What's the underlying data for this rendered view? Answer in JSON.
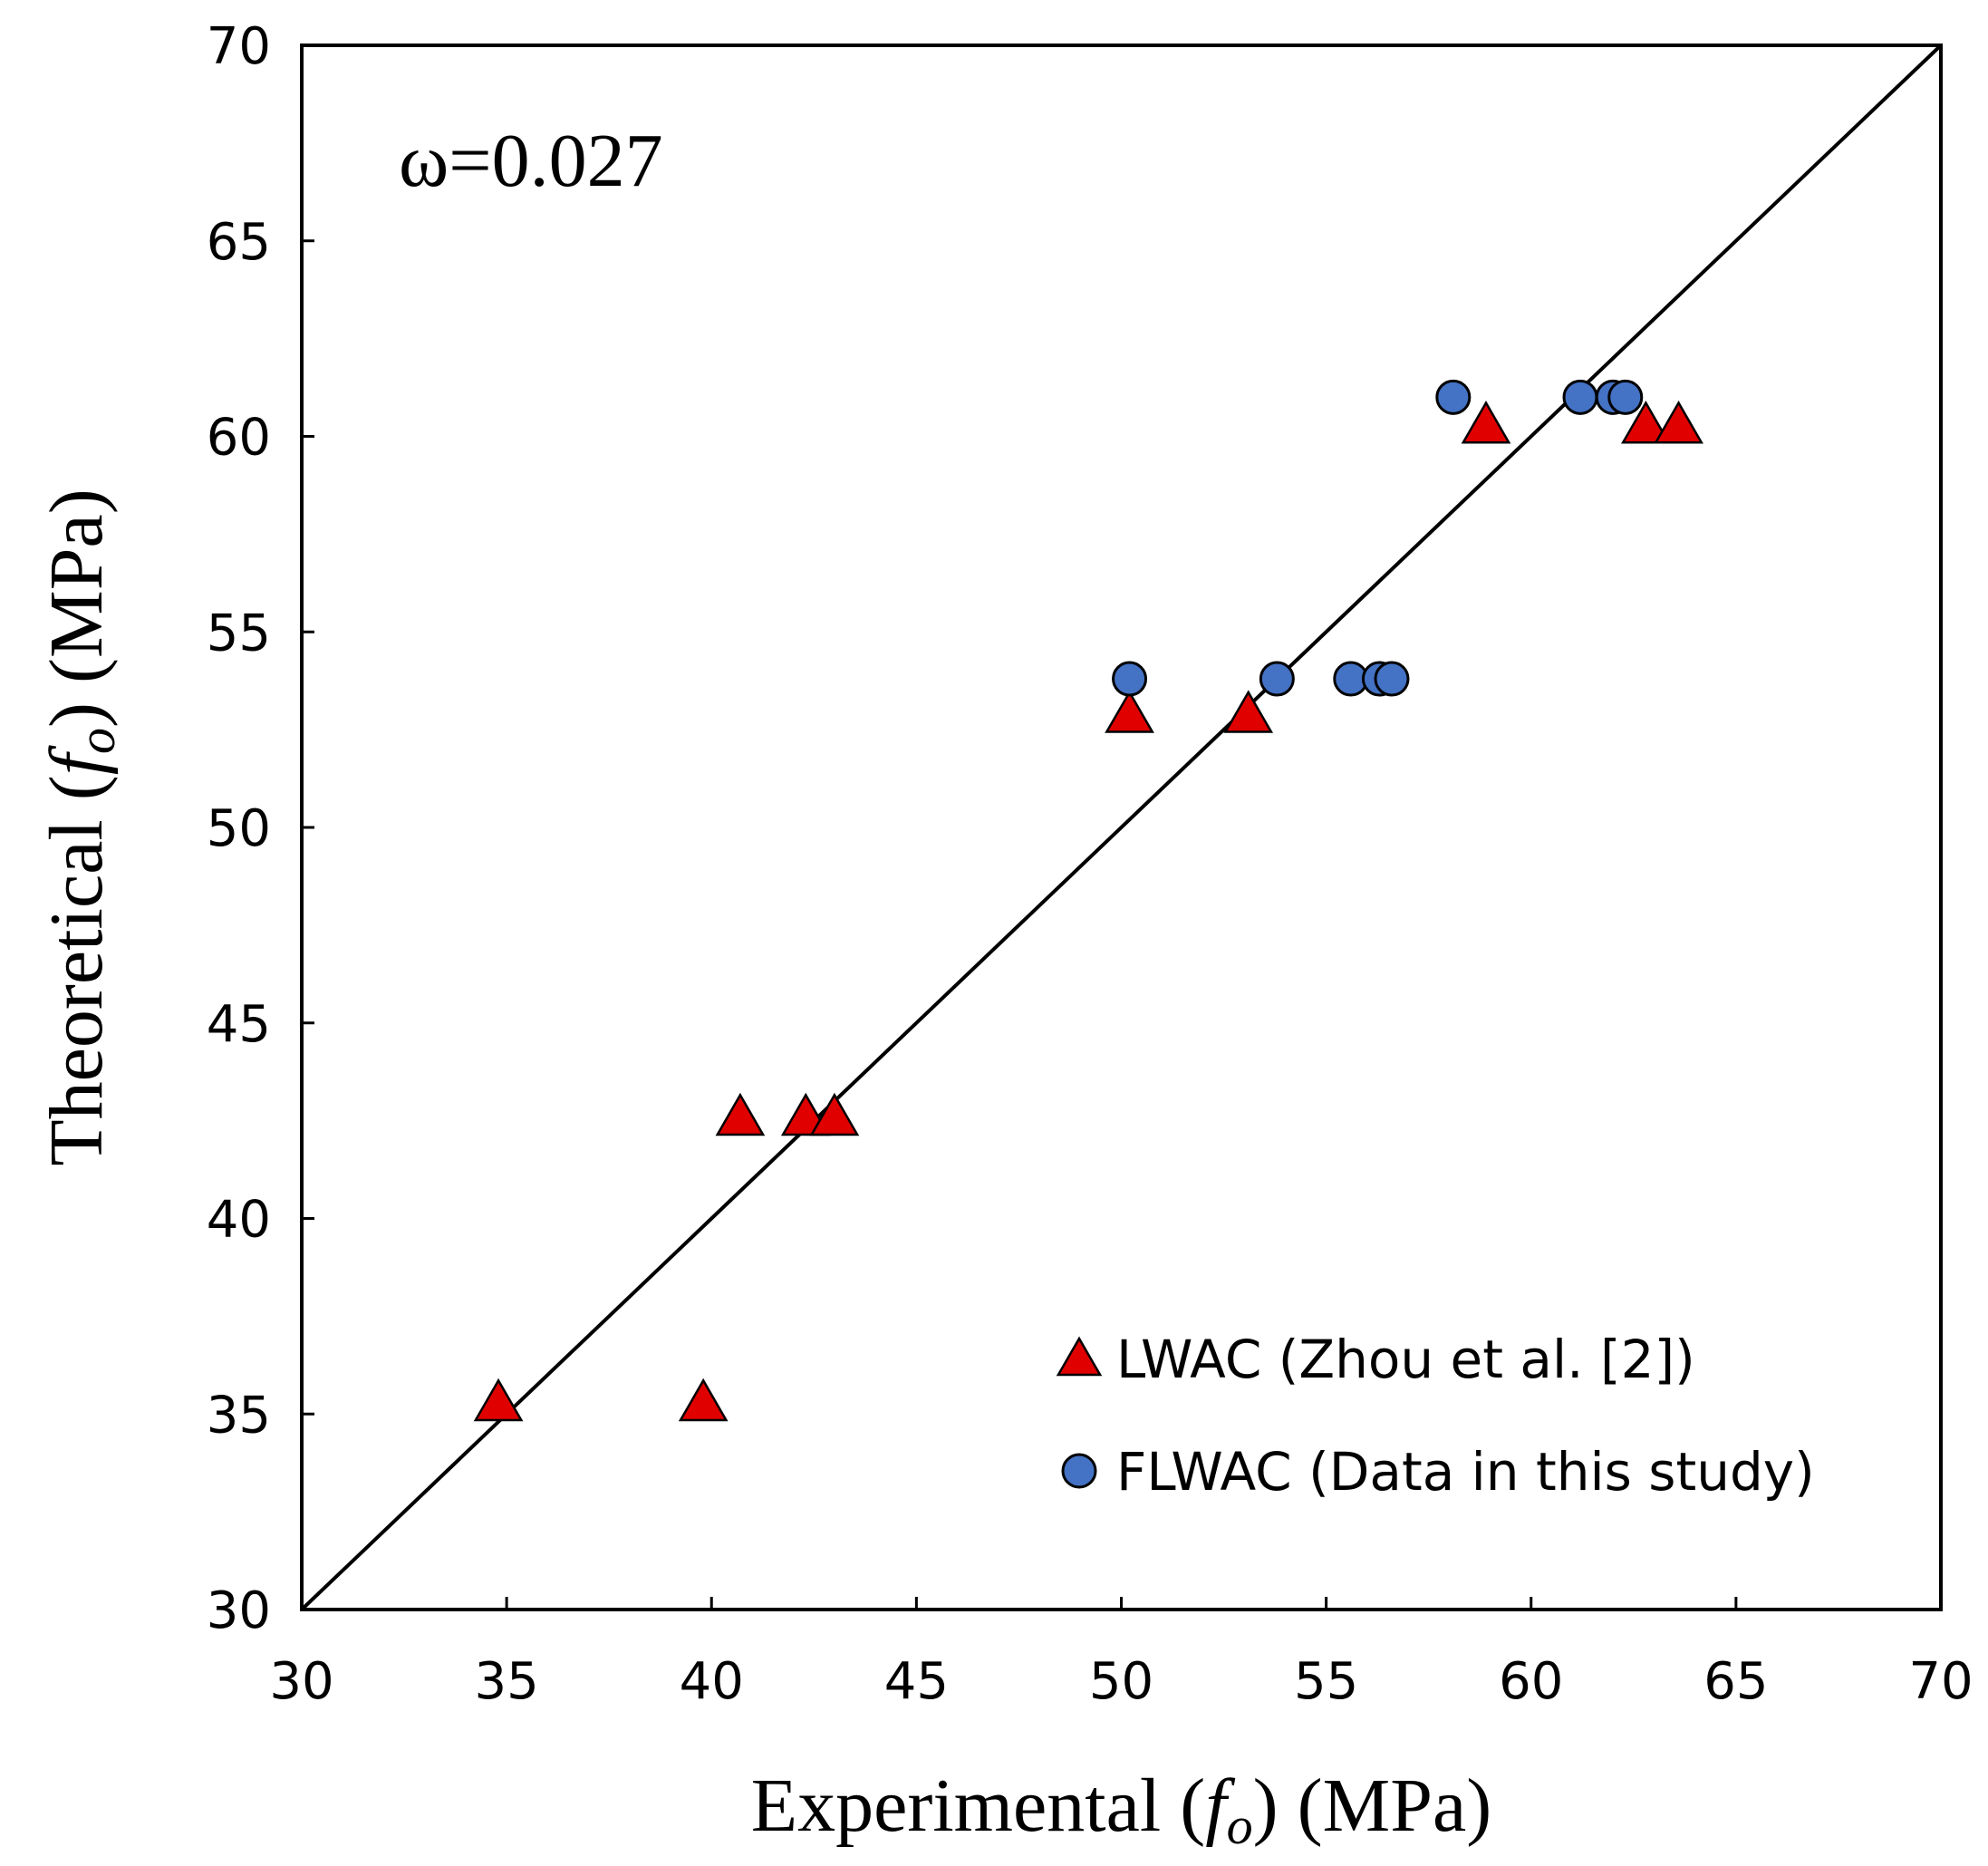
{
  "chart_data": {
    "type": "scatter",
    "title": "",
    "xlabel": {
      "prefix": "Experimental (",
      "symbol": "f",
      "sub": "o",
      "suffix": ") (MPa)"
    },
    "ylabel": {
      "prefix": "Theoretical (",
      "symbol": "f",
      "sub": "o",
      "suffix": ") (MPa)"
    },
    "xlim": [
      30,
      70
    ],
    "ylim": [
      30,
      70
    ],
    "xticks": [
      30,
      35,
      40,
      45,
      50,
      55,
      60,
      65,
      70
    ],
    "yticks": [
      30,
      35,
      40,
      45,
      50,
      55,
      60,
      65,
      70
    ],
    "annotation": "ω=0.027",
    "reference_line": {
      "name": "y = x",
      "from": [
        30,
        30
      ],
      "to": [
        70,
        70
      ]
    },
    "legend_position": "bottom-right",
    "series": [
      {
        "name": "LWAC (Zhou et al. [2])",
        "marker": "triangle",
        "color": "#e00000",
        "points": [
          [
            34.8,
            35.3
          ],
          [
            39.8,
            35.3
          ],
          [
            40.7,
            42.6
          ],
          [
            42.3,
            42.6
          ],
          [
            43.0,
            42.6
          ],
          [
            50.2,
            52.9
          ],
          [
            53.1,
            52.9
          ],
          [
            58.9,
            60.3
          ],
          [
            62.8,
            60.3
          ],
          [
            63.6,
            60.3
          ]
        ]
      },
      {
        "name": "FLWAC (Data in this study)",
        "marker": "circle",
        "color": "#4472c4",
        "points": [
          [
            50.2,
            53.8
          ],
          [
            53.8,
            53.8
          ],
          [
            55.6,
            53.8
          ],
          [
            56.3,
            53.8
          ],
          [
            56.6,
            53.8
          ],
          [
            58.1,
            61.0
          ],
          [
            61.2,
            61.0
          ],
          [
            62.0,
            61.0
          ],
          [
            62.3,
            61.0
          ]
        ]
      }
    ]
  }
}
